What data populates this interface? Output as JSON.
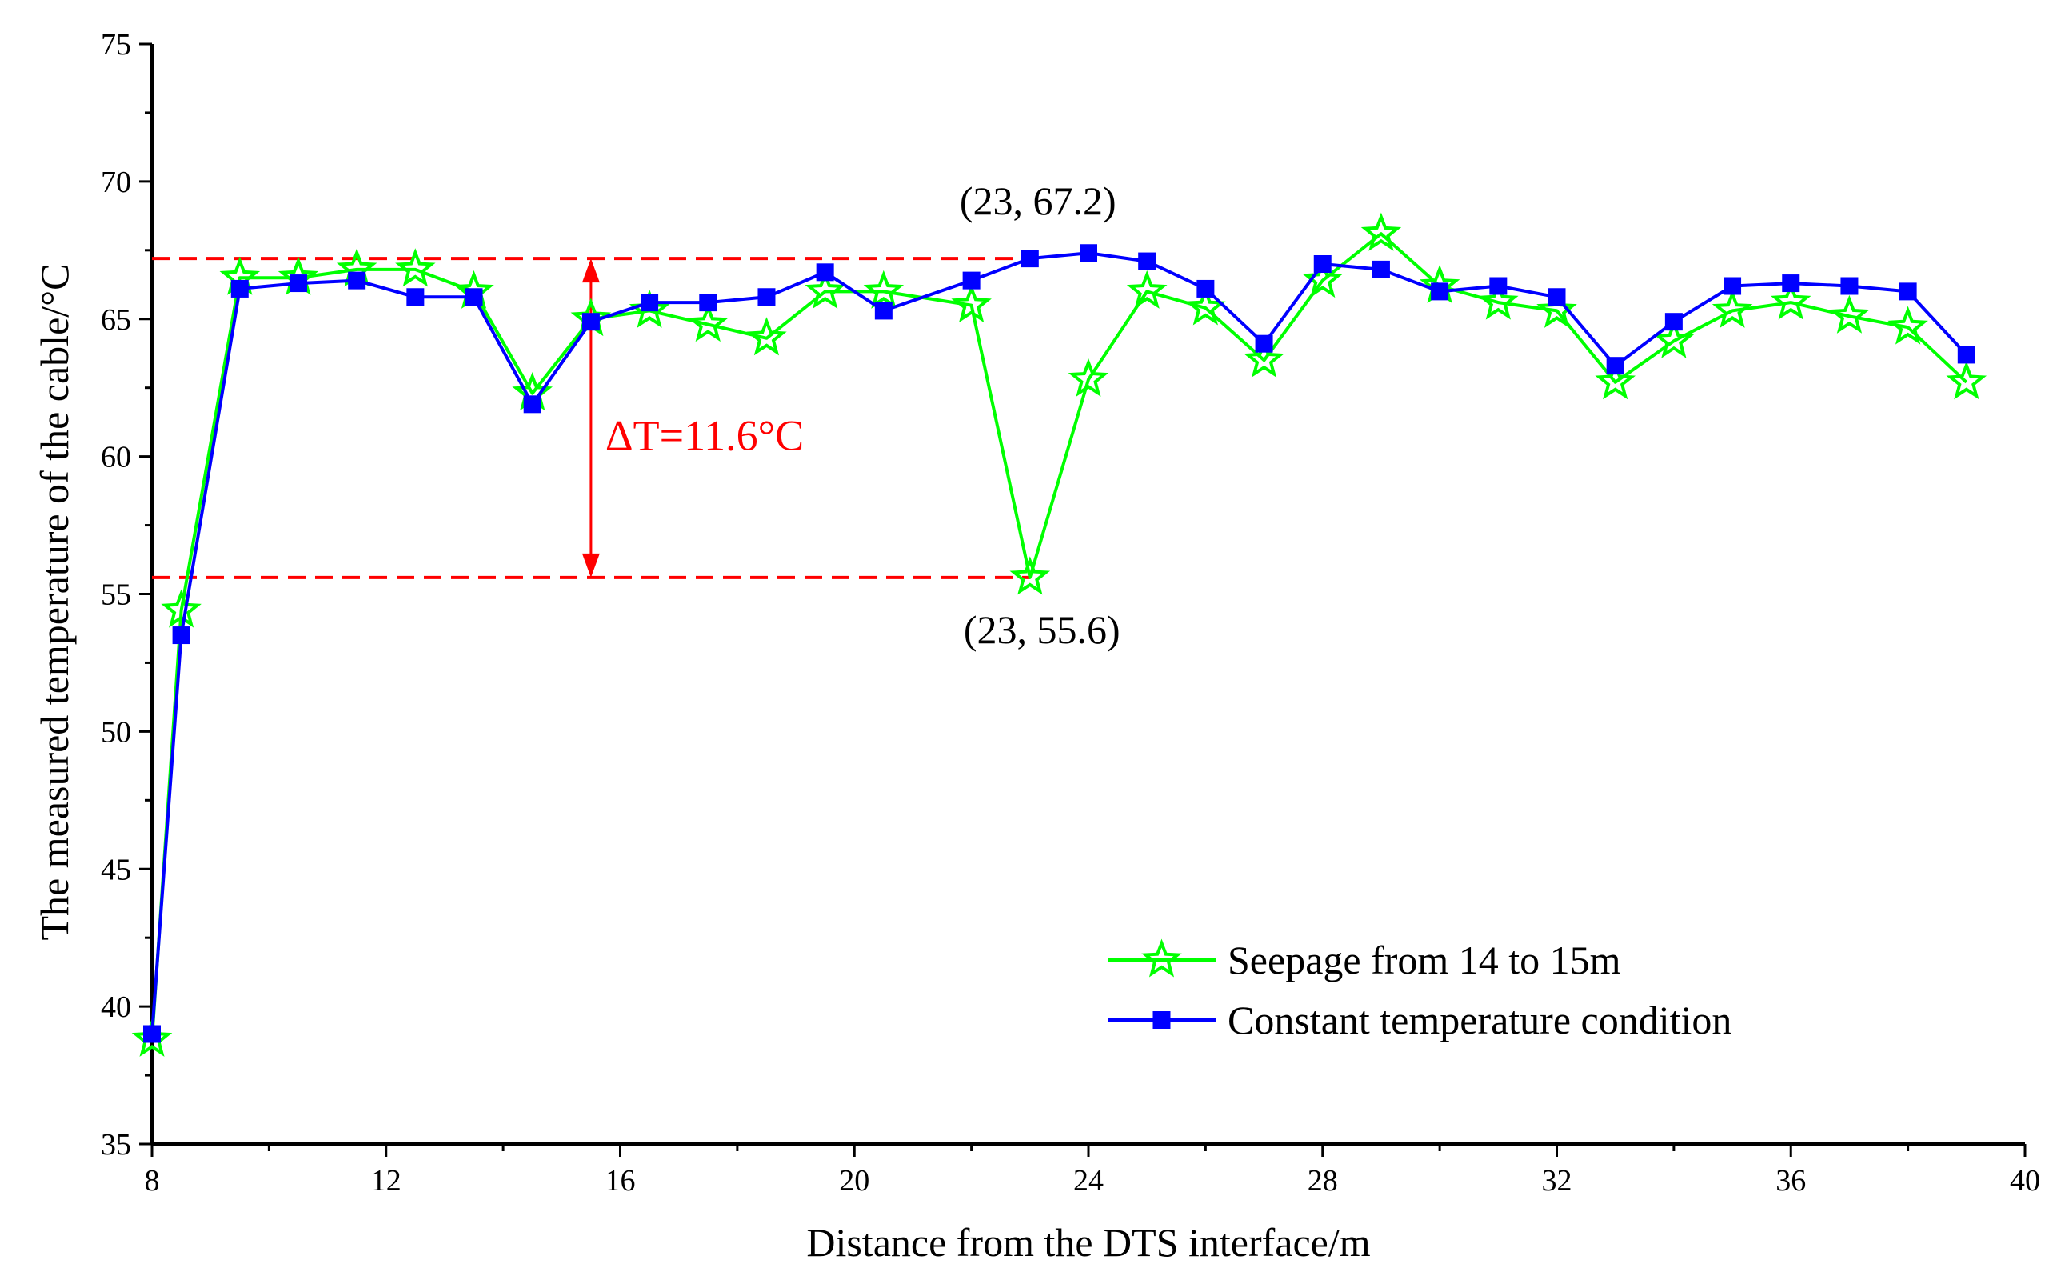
{
  "chart_data": {
    "type": "line",
    "title": "",
    "xlabel": "Distance from the DTS interface/m",
    "ylabel": "The measured temperature of the cable/°C",
    "xlim": [
      8,
      40
    ],
    "ylim": [
      35,
      75
    ],
    "xticks": [
      8,
      12,
      16,
      20,
      24,
      28,
      32,
      36,
      40
    ],
    "yticks": [
      35,
      40,
      45,
      50,
      55,
      60,
      65,
      70,
      75
    ],
    "x_minor_step": 2,
    "y_minor_step": 2.5,
    "grid": false,
    "legend_position": "bottom-right",
    "series": [
      {
        "name": "Seepage from 14 to 15m",
        "color": "#00ff00",
        "marker": "star",
        "x": [
          8,
          8.5,
          9.5,
          10.5,
          11.5,
          12.5,
          13.5,
          14.5,
          15.5,
          16.5,
          17.5,
          18.5,
          19.5,
          20.5,
          22,
          23,
          24,
          25,
          26,
          27,
          28,
          29,
          30,
          31,
          32,
          33,
          34,
          35,
          36,
          37,
          38,
          39
        ],
        "values": [
          38.8,
          54.4,
          66.5,
          66.5,
          66.8,
          66.8,
          66.0,
          62.3,
          65.0,
          65.3,
          64.8,
          64.3,
          66.0,
          66.0,
          65.5,
          55.6,
          62.8,
          66.0,
          65.4,
          63.5,
          66.4,
          68.1,
          66.2,
          65.6,
          65.3,
          62.7,
          64.2,
          65.3,
          65.6,
          65.1,
          64.7,
          62.7
        ]
      },
      {
        "name": "Constant temperature condition",
        "color": "#0000ff",
        "marker": "square",
        "x": [
          8,
          8.5,
          9.5,
          10.5,
          11.5,
          12.5,
          13.5,
          14.5,
          15.5,
          16.5,
          17.5,
          18.5,
          19.5,
          20.5,
          22,
          23,
          24,
          25,
          26,
          27,
          28,
          29,
          30,
          31,
          32,
          33,
          34,
          35,
          36,
          37,
          38,
          39
        ],
        "values": [
          39.0,
          53.5,
          66.1,
          66.3,
          66.4,
          65.8,
          65.8,
          61.9,
          64.9,
          65.6,
          65.6,
          65.8,
          66.7,
          65.3,
          66.4,
          67.2,
          67.4,
          67.1,
          66.1,
          64.1,
          67.0,
          66.8,
          66.0,
          66.2,
          65.8,
          63.3,
          64.9,
          66.2,
          66.3,
          66.2,
          66.0,
          63.7
        ]
      }
    ],
    "annotations": [
      {
        "text": "(23, 67.2)",
        "x": 23,
        "y": 67.2
      },
      {
        "text": "(23, 55.6)",
        "x": 23,
        "y": 55.6
      },
      {
        "text": "ΔT=11.6°C",
        "color": "#ff0000"
      }
    ],
    "reference_lines": [
      {
        "orientation": "horizontal",
        "value": 67.2,
        "from_x": 8,
        "to_x": 23,
        "color": "#ff0000",
        "style": "dashed"
      },
      {
        "orientation": "horizontal",
        "value": 55.6,
        "from_x": 8,
        "to_x": 23,
        "color": "#ff0000",
        "style": "dashed"
      },
      {
        "orientation": "vertical-arrow",
        "x": 15.5,
        "from_y": 55.6,
        "to_y": 67.2,
        "color": "#ff0000"
      }
    ]
  }
}
